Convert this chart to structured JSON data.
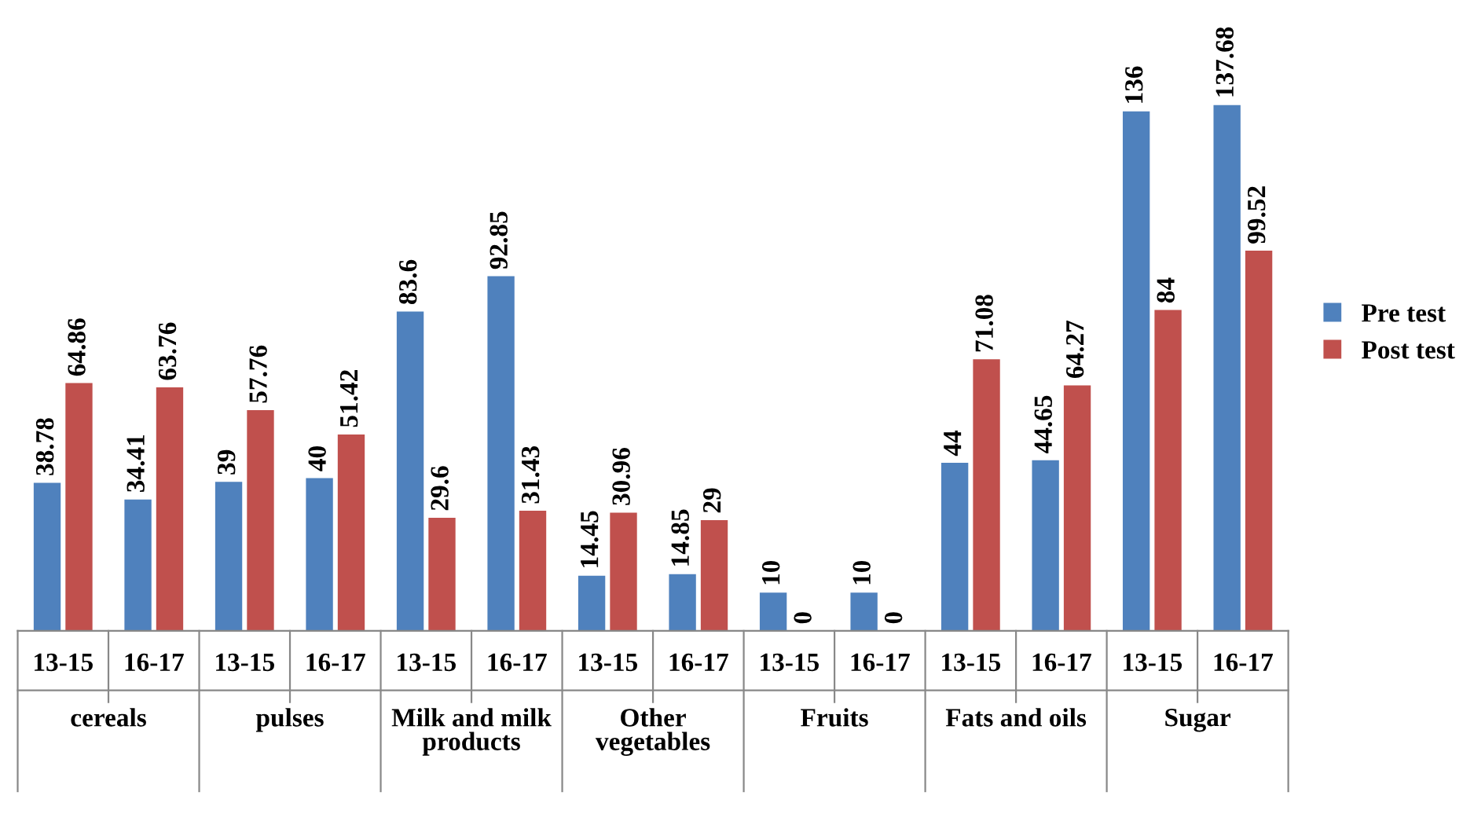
{
  "chart_data": {
    "type": "bar",
    "categories": [
      "13-15",
      "16-17",
      "13-15",
      "16-17",
      "13-15",
      "16-17",
      "13-15",
      "16-17",
      "13-15",
      "16-17",
      "13-15",
      "16-17",
      "13-15",
      "16-17"
    ],
    "annotations": [
      "cereals",
      "pulses",
      "Milk and milk products",
      "Other vegetables",
      "Fruits",
      "Fats and oils",
      "Sugar"
    ],
    "series": [
      {
        "name": "Pre test",
        "color": "#4f81bd",
        "values": [
          38.78,
          34.41,
          39,
          40,
          83.6,
          92.85,
          14.45,
          14.85,
          10,
          10,
          44,
          44.65,
          136,
          137.68
        ]
      },
      {
        "name": "Post test",
        "color": "#c0504d",
        "values": [
          64.86,
          63.76,
          57.76,
          51.42,
          29.6,
          31.43,
          30.96,
          29,
          0,
          0,
          71.08,
          64.27,
          84,
          99.52
        ]
      }
    ],
    "data_labels": true,
    "legend": "right",
    "grid": false
  }
}
